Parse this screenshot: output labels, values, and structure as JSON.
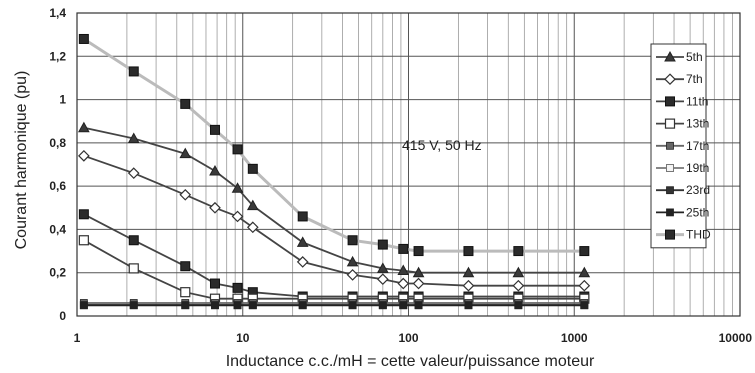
{
  "chart_data": {
    "type": "line",
    "title": "",
    "xlabel": "Inductance c.c./mH = cette valeur/puissance moteur",
    "ylabel": "Courant harmonique (pu)",
    "x_scale": "log",
    "xlim": [
      1,
      10000
    ],
    "ylim": [
      0,
      1.4
    ],
    "x_tick_labels": [
      "1",
      "10",
      "100",
      "1000",
      "10000"
    ],
    "y_tick_labels": [
      "0",
      "0,2",
      "0,4",
      "0,6",
      "0,8",
      "1",
      "1,2",
      "1,4"
    ],
    "grid": true,
    "legend_position": "right",
    "annotation": "415 V, 50 Hz",
    "x": [
      1.1,
      2.2,
      4.5,
      6.8,
      9.3,
      11.5,
      23,
      46,
      70,
      93,
      115,
      230,
      460,
      1150
    ],
    "series": [
      {
        "name": "5th",
        "marker": "triangle",
        "color": "#444444",
        "values": [
          0.87,
          0.82,
          0.75,
          0.67,
          0.59,
          0.51,
          0.34,
          0.25,
          0.22,
          0.21,
          0.2,
          0.2,
          0.2,
          0.2
        ]
      },
      {
        "name": "7th",
        "marker": "diamond",
        "color": "#444444",
        "values": [
          0.74,
          0.66,
          0.56,
          0.5,
          0.46,
          0.41,
          0.25,
          0.19,
          0.17,
          0.15,
          0.15,
          0.14,
          0.14,
          0.14
        ]
      },
      {
        "name": "11th",
        "marker": "square-filled",
        "color": "#444444",
        "values": [
          0.47,
          0.35,
          0.23,
          0.15,
          0.13,
          0.11,
          0.09,
          0.09,
          0.09,
          0.09,
          0.09,
          0.09,
          0.09,
          0.09
        ]
      },
      {
        "name": "13th",
        "marker": "square-open",
        "color": "#444444",
        "values": [
          0.35,
          0.22,
          0.11,
          0.08,
          0.08,
          0.08,
          0.08,
          0.08,
          0.08,
          0.08,
          0.08,
          0.08,
          0.08,
          0.08
        ]
      },
      {
        "name": "17th",
        "marker": "square-small",
        "color": "#666666",
        "values": [
          0.06,
          0.06,
          0.06,
          0.06,
          0.06,
          0.06,
          0.06,
          0.06,
          0.06,
          0.06,
          0.06,
          0.06,
          0.06,
          0.06
        ]
      },
      {
        "name": "19th",
        "marker": "square-small-open",
        "color": "#777777",
        "values": [
          0.05,
          0.05,
          0.05,
          0.05,
          0.05,
          0.05,
          0.05,
          0.05,
          0.05,
          0.05,
          0.05,
          0.05,
          0.05,
          0.05
        ]
      },
      {
        "name": "23rd",
        "marker": "square-small",
        "color": "#333333",
        "values": [
          0.05,
          0.05,
          0.05,
          0.05,
          0.05,
          0.05,
          0.05,
          0.05,
          0.05,
          0.05,
          0.05,
          0.05,
          0.05,
          0.05
        ]
      },
      {
        "name": "25th",
        "marker": "square-small",
        "color": "#222222",
        "values": [
          0.05,
          0.05,
          0.05,
          0.05,
          0.05,
          0.05,
          0.05,
          0.05,
          0.05,
          0.05,
          0.05,
          0.05,
          0.05,
          0.05
        ]
      },
      {
        "name": "THD",
        "marker": "square-filled",
        "color": "#bbbbbb",
        "values": [
          1.28,
          1.13,
          0.98,
          0.86,
          0.77,
          0.68,
          0.46,
          0.35,
          0.33,
          0.31,
          0.3,
          0.3,
          0.3,
          0.3
        ]
      }
    ]
  }
}
